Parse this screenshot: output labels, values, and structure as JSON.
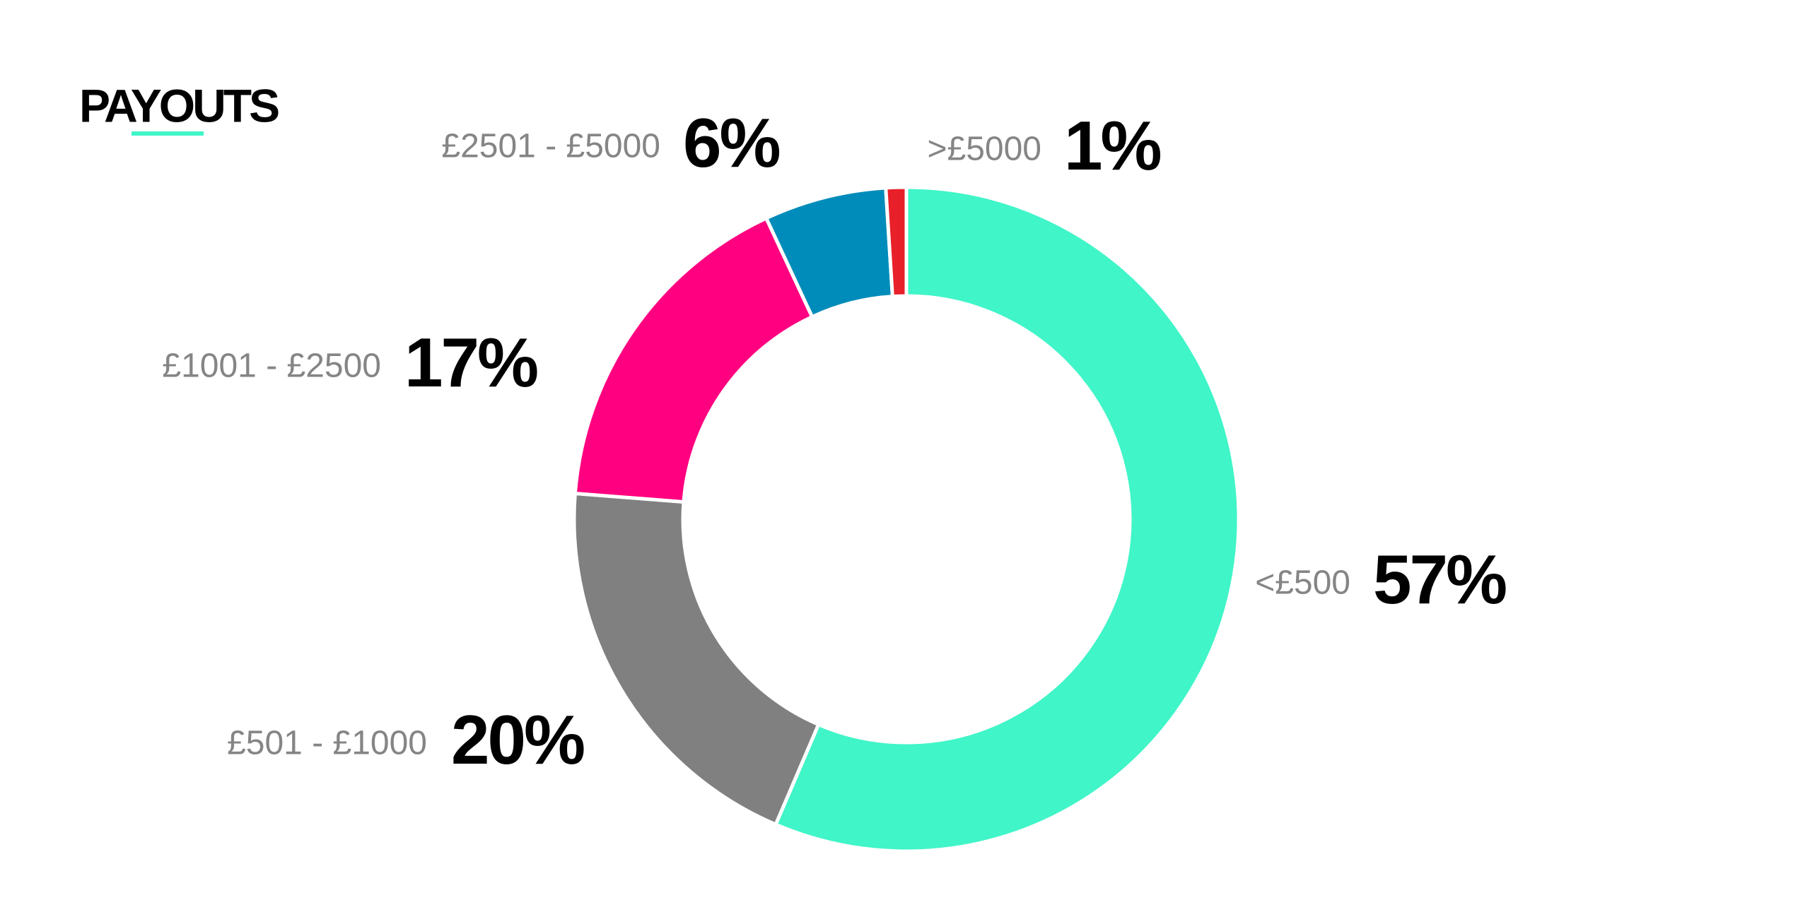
{
  "chart_data": {
    "type": "donut",
    "title": "PAYOUTS",
    "categories": [
      "<£500",
      "£501 - £1000",
      "£1001 - £2500",
      "£2501 - £5000",
      ">£5000"
    ],
    "values": [
      57,
      20,
      17,
      6,
      1
    ],
    "value_labels": [
      "57%",
      "20%",
      "17%",
      "6%",
      "1%"
    ],
    "colors": [
      "#40f5c8",
      "#808080",
      "#ff0080",
      "#008cba",
      "#e8202a"
    ]
  }
}
